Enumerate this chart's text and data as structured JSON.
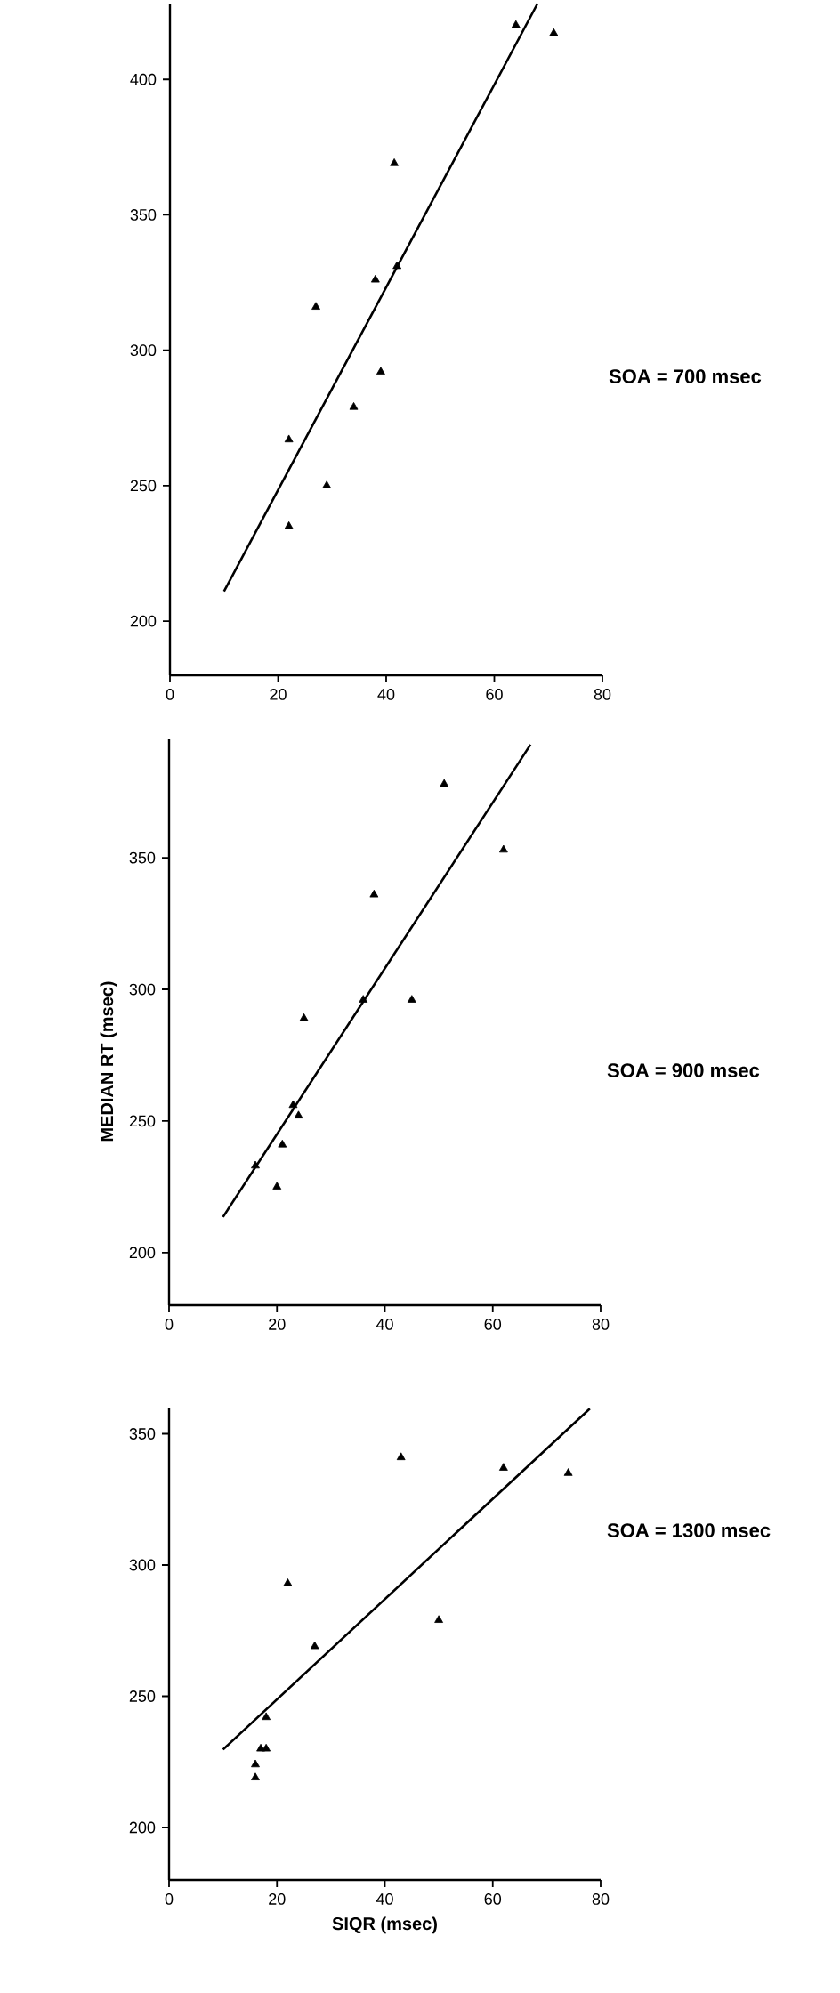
{
  "chart_data": [
    {
      "type": "scatter",
      "annotations": [
        "SOA = 700 msec"
      ],
      "xlim": [
        0,
        80
      ],
      "ylim": [
        180,
        428
      ],
      "xticks": [
        0,
        20,
        40,
        60,
        80
      ],
      "yticks": [
        200,
        250,
        300,
        350,
        400
      ],
      "series": [
        {
          "marker": "triangle",
          "color": "#000000",
          "x": [
            64,
            71,
            41.5,
            42,
            38,
            27,
            39,
            34,
            22,
            29,
            22
          ],
          "values": [
            420,
            417,
            369,
            331,
            326,
            316,
            292,
            279,
            267,
            250,
            235
          ]
        },
        {
          "type": "line",
          "marker": "none",
          "color": "#000000",
          "x": [
            10,
            68
          ],
          "values": [
            211,
            428
          ]
        }
      ]
    },
    {
      "type": "scatter",
      "ylabel": "MEDIAN  RT  (msec)",
      "annotations": [
        "SOA = 900 msec"
      ],
      "xlim": [
        0,
        80
      ],
      "ylim": [
        180,
        395
      ],
      "xticks": [
        0,
        20,
        40,
        60,
        80
      ],
      "yticks": [
        200,
        250,
        300,
        350
      ],
      "series": [
        {
          "marker": "triangle",
          "color": "#000000",
          "x": [
            51,
            62,
            38,
            36,
            45,
            25,
            23,
            24,
            21,
            16,
            20
          ],
          "values": [
            378,
            353,
            336,
            296,
            296,
            289,
            256,
            252,
            241,
            233,
            225
          ]
        },
        {
          "type": "line",
          "marker": "none",
          "color": "#000000",
          "x": [
            10,
            67
          ],
          "values": [
            213.5,
            393
          ]
        }
      ]
    },
    {
      "type": "scatter",
      "xlabel": "SIQR  (msec)",
      "annotations": [
        "SOA = 1300 msec"
      ],
      "xlim": [
        0,
        80
      ],
      "ylim": [
        180,
        360
      ],
      "xticks": [
        0,
        20,
        40,
        60,
        80
      ],
      "yticks": [
        200,
        250,
        300,
        350
      ],
      "series": [
        {
          "marker": "triangle",
          "color": "#000000",
          "x": [
            43,
            62,
            74,
            22,
            50,
            27,
            18,
            17,
            18,
            16,
            16
          ],
          "values": [
            341,
            337,
            335,
            293,
            279,
            269,
            242,
            230,
            230,
            224,
            219
          ]
        },
        {
          "type": "line",
          "marker": "none",
          "color": "#000000",
          "x": [
            10,
            78
          ],
          "values": [
            229.7,
            359.6
          ]
        }
      ]
    }
  ]
}
